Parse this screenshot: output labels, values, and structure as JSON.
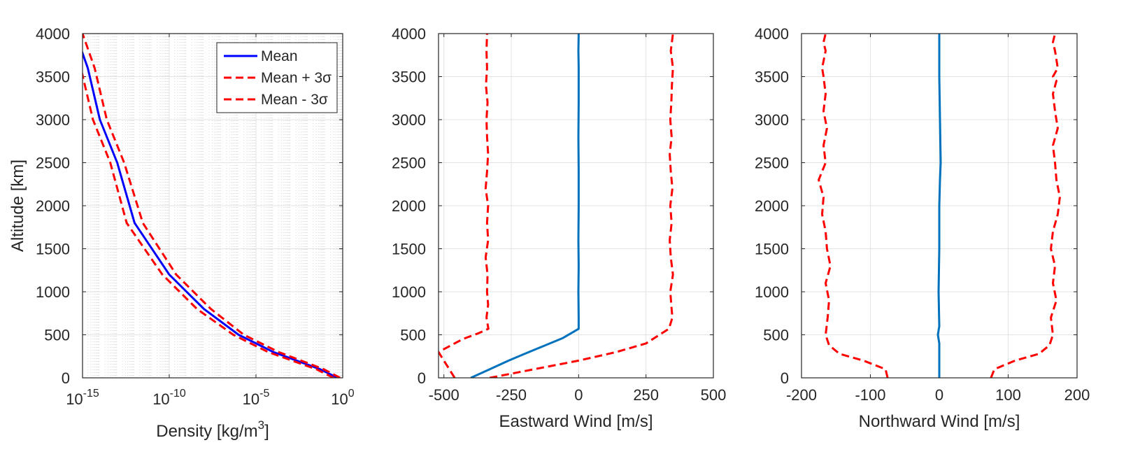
{
  "chart_data": [
    {
      "type": "line",
      "xlabel": "Density [kg/m",
      "xlabel_sup": "3",
      "xlabel_tail": "]",
      "ylabel": "Altitude [km]",
      "xscale": "log",
      "xlim": [
        1e-15,
        1
      ],
      "ylim": [
        0,
        4000
      ],
      "grid": true,
      "minor_grid": true,
      "legend_position": "top-right",
      "xticks": [
        {
          "base": "10",
          "exp": "-15"
        },
        {
          "base": "10",
          "exp": "-10"
        },
        {
          "base": "10",
          "exp": "-5"
        },
        {
          "base": "10",
          "exp": "0"
        }
      ],
      "yticks": [
        "0",
        "500",
        "1000",
        "1500",
        "2000",
        "2500",
        "3000",
        "3500",
        "4000"
      ],
      "series": [
        {
          "name": "Mean",
          "color": "#0000FF",
          "style": "solid",
          "x": [
            0.5,
            0.05,
            0.0001,
            1e-06,
            1e-08,
            1e-10,
            1e-12,
            1e-13,
            1e-14,
            2e-15,
            4e-16
          ],
          "y": [
            0,
            100,
            300,
            500,
            800,
            1200,
            1800,
            2500,
            3000,
            3600,
            4000
          ]
        },
        {
          "name": "Mean + 3σ",
          "color": "#FF0000",
          "style": "dashed",
          "x": [
            0.7,
            0.08,
            0.0002,
            2e-06,
            2.5e-08,
            2.5e-10,
            3e-12,
            2.5e-13,
            2.5e-14,
            5e-15,
            1e-15
          ],
          "y": [
            0,
            100,
            300,
            500,
            800,
            1200,
            1800,
            2500,
            3000,
            3600,
            4000
          ]
        },
        {
          "name": "Mean - 3σ",
          "color": "#FF0000",
          "style": "dashed",
          "x": [
            0.3,
            0.03,
            5e-05,
            5e-07,
            4e-09,
            4e-11,
            3.5e-13,
            4e-14,
            4e-15,
            8e-16,
            2e-16
          ],
          "y": [
            0,
            100,
            300,
            500,
            800,
            1200,
            1800,
            2500,
            3000,
            3600,
            4000
          ]
        }
      ]
    },
    {
      "type": "line",
      "xlabel": "Eastward Wind [m/s]",
      "ylabel": "",
      "xlim": [
        -520,
        500
      ],
      "ylim": [
        0,
        4000
      ],
      "grid": true,
      "xticks": [
        "-500",
        "-250",
        "0",
        "250",
        "500"
      ],
      "xtick_values": [
        -500,
        -250,
        0,
        250,
        500
      ],
      "yticks": [
        "0",
        "500",
        "1000",
        "1500",
        "2000",
        "2500",
        "3000",
        "3500",
        "4000"
      ],
      "series": [
        {
          "color": "#0072BD",
          "style": "solid",
          "x": [
            -400,
            -330,
            -260,
            -200,
            -130,
            -60,
            0,
            0,
            -1,
            0,
            -1,
            0,
            0,
            -1,
            0,
            0,
            -1,
            0
          ],
          "y": [
            0,
            100,
            200,
            280,
            370,
            460,
            570,
            700,
            1000,
            1300,
            1600,
            2000,
            2400,
            2800,
            3200,
            3600,
            3800,
            4000
          ]
        },
        {
          "color": "#FF0000",
          "style": "dashed",
          "x": [
            -330,
            0,
            140,
            250,
            300,
            335,
            348,
            345,
            340,
            350,
            342,
            338,
            345,
            340,
            348,
            342,
            338,
            345,
            340,
            344,
            346,
            350,
            342,
            346,
            350
          ],
          "y": [
            0,
            200,
            300,
            400,
            500,
            570,
            700,
            800,
            1000,
            1200,
            1400,
            1600,
            1800,
            2000,
            2200,
            2400,
            2600,
            2800,
            3000,
            3200,
            3400,
            3600,
            3800,
            3900,
            4000
          ]
        },
        {
          "color": "#FF0000",
          "style": "dashed",
          "x": [
            -460,
            -480,
            -520,
            -490,
            -430,
            -370,
            -335,
            -342,
            -336,
            -340,
            -338,
            -345,
            -336,
            -340,
            -336,
            -345,
            -340,
            -336,
            -340,
            -342,
            -338,
            -344,
            -340,
            -342,
            -340
          ],
          "y": [
            0,
            100,
            300,
            350,
            450,
            520,
            570,
            700,
            850,
            1000,
            1200,
            1400,
            1600,
            1800,
            2000,
            2200,
            2400,
            2600,
            2800,
            3000,
            3200,
            3400,
            3600,
            3800,
            4000
          ]
        }
      ]
    },
    {
      "type": "line",
      "xlabel": "Northward Wind [m/s]",
      "ylabel": "",
      "xlim": [
        -200,
        200
      ],
      "ylim": [
        0,
        4000
      ],
      "grid": true,
      "xticks": [
        "-200",
        "-100",
        "0",
        "100",
        "200"
      ],
      "xtick_values": [
        -200,
        -100,
        0,
        100,
        200
      ],
      "yticks": [
        "0",
        "500",
        "1000",
        "1500",
        "2000",
        "2500",
        "3000",
        "3500",
        "4000"
      ],
      "series": [
        {
          "color": "#0072BD",
          "style": "solid",
          "x": [
            0,
            0,
            -2,
            0,
            -1,
            0,
            0,
            1,
            2,
            1,
            0,
            0,
            0
          ],
          "y": [
            0,
            400,
            500,
            600,
            1000,
            1500,
            2000,
            2300,
            2500,
            3000,
            3500,
            3800,
            4000
          ]
        },
        {
          "color": "#FF0000",
          "style": "dashed",
          "x": [
            75,
            80,
            110,
            145,
            160,
            165,
            162,
            170,
            165,
            168,
            162,
            165,
            172,
            175,
            170,
            168,
            165,
            172,
            168,
            165,
            170,
            165,
            172,
            168,
            165,
            168
          ],
          "y": [
            0,
            100,
            200,
            280,
            380,
            500,
            700,
            900,
            1100,
            1300,
            1500,
            1700,
            1900,
            2100,
            2300,
            2500,
            2700,
            2900,
            3100,
            3300,
            3450,
            3500,
            3600,
            3800,
            3900,
            4000
          ]
        },
        {
          "color": "#FF0000",
          "style": "dashed",
          "x": [
            -75,
            -78,
            -110,
            -145,
            -160,
            -165,
            -162,
            -160,
            -165,
            -158,
            -163,
            -165,
            -170,
            -168,
            -175,
            -165,
            -168,
            -163,
            -168,
            -165,
            -168,
            -170,
            -165,
            -168,
            -165
          ],
          "y": [
            0,
            100,
            200,
            280,
            380,
            500,
            700,
            900,
            1100,
            1300,
            1500,
            1700,
            1900,
            2100,
            2300,
            2500,
            2700,
            2900,
            3100,
            3300,
            3500,
            3600,
            3800,
            3900,
            4000
          ]
        }
      ]
    }
  ]
}
